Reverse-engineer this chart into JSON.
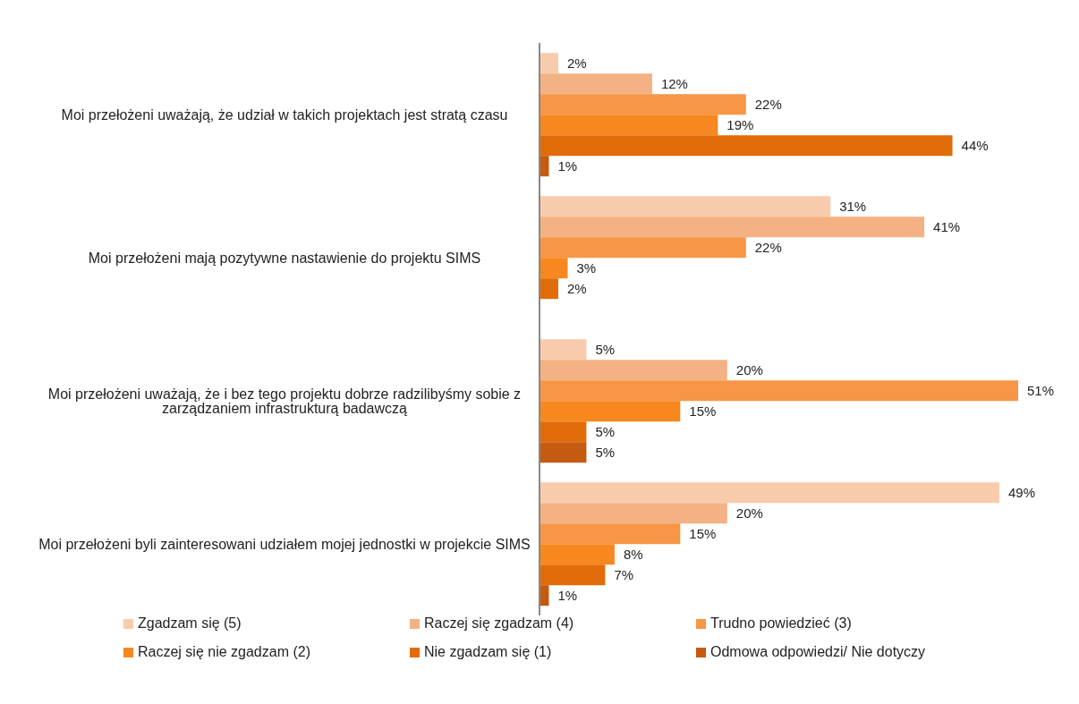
{
  "chart_data": {
    "type": "bar",
    "orientation": "horizontal",
    "categories": [
      "Moi przełożeni uważają, że udział w takich projektach jest stratą czasu",
      "Moi przełożeni mają pozytywne nastawienie do projektu SIMS",
      "Moi przełożeni uważają, że i bez tego projektu dobrze radzilibyśmy sobie z zarządzaniem infrastrukturą badawczą",
      "Moi przełożeni byli zainteresowani udziałem mojej jednostki w projekcie SIMS"
    ],
    "series": [
      {
        "name": "Zgadzam się (5)",
        "color": "#f8cbad",
        "values": [
          2,
          31,
          5,
          49
        ],
        "value_labels": [
          "2%",
          "31%",
          "5%",
          "49%"
        ]
      },
      {
        "name": "Raczej się zgadzam (4)",
        "color": "#f4b183",
        "values": [
          12,
          41,
          20,
          20
        ],
        "value_labels": [
          "12%",
          "41%",
          "20%",
          "20%"
        ]
      },
      {
        "name": "Trudno powiedzieć (3)",
        "color": "#f79646",
        "values": [
          22,
          22,
          51,
          15
        ],
        "value_labels": [
          "22%",
          "22%",
          "51%",
          "15%"
        ]
      },
      {
        "name": "Raczej się nie zgadzam (2)",
        "color": "#f7881f",
        "values": [
          19,
          3,
          15,
          8
        ],
        "value_labels": [
          "19%",
          "3%",
          "15%",
          "8%"
        ]
      },
      {
        "name": "Nie zgadzam się (1)",
        "color": "#e36c0a",
        "values": [
          44,
          2,
          5,
          7
        ],
        "value_labels": [
          "44%",
          "2%",
          "5%",
          "7%"
        ]
      },
      {
        "name": "Odmowa odpowiedzi/ Nie dotyczy",
        "color": "#c55a11",
        "values": [
          1,
          null,
          5,
          1
        ],
        "value_labels": [
          "1%",
          null,
          "5%",
          "1%"
        ]
      }
    ],
    "legend": "bottom",
    "grid": false
  }
}
